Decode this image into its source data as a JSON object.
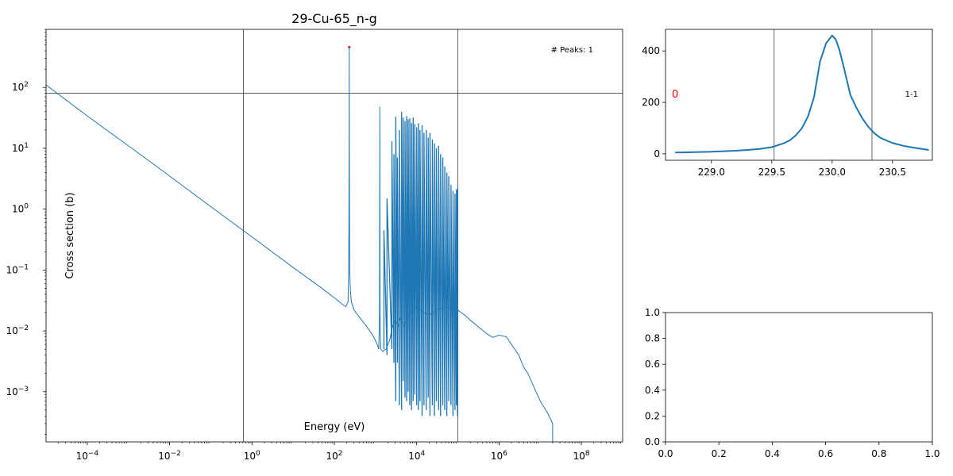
{
  "chart_data": [
    {
      "type": "line",
      "title": "29-Cu-65_n-g",
      "xlabel": "Energy (eV)",
      "ylabel": "Cross section (b)",
      "xscale": "log",
      "yscale": "log",
      "xlim": [
        1e-05,
        1000000000
      ],
      "ylim": [
        0.00015,
        900
      ],
      "x_ticks": [
        {
          "value": 0.0001,
          "base": "10",
          "exp": "−4"
        },
        {
          "value": 0.01,
          "base": "10",
          "exp": "−2"
        },
        {
          "value": 1,
          "base": "10",
          "exp": "0"
        },
        {
          "value": 100,
          "base": "10",
          "exp": "2"
        },
        {
          "value": 10000,
          "base": "10",
          "exp": "4"
        },
        {
          "value": 1000000,
          "base": "10",
          "exp": "6"
        },
        {
          "value": 100000000,
          "base": "10",
          "exp": "8"
        }
      ],
      "y_ticks": [
        {
          "value": 0.001,
          "base": "10",
          "exp": "−3"
        },
        {
          "value": 0.01,
          "base": "10",
          "exp": "−2"
        },
        {
          "value": 0.1,
          "base": "10",
          "exp": "−1"
        },
        {
          "value": 1,
          "base": "10",
          "exp": "0"
        },
        {
          "value": 10,
          "base": "10",
          "exp": "1"
        },
        {
          "value": 100,
          "base": "10",
          "exp": "2"
        }
      ],
      "vlines": [
        0.625,
        100000
      ],
      "hlines": [
        80
      ],
      "annotation": "# Peaks: 1",
      "peak_marker": {
        "x": 230,
        "y": 460,
        "color": "#d62728"
      },
      "line_color": "#1f77b4",
      "series": [
        {
          "x": [
            1e-05,
            0.0001,
            0.001,
            0.01,
            0.1,
            1,
            10,
            50,
            100,
            150,
            190,
            215,
            222,
            226,
            228,
            229,
            229.6,
            230,
            230.4,
            231,
            232,
            234,
            238,
            245,
            260,
            300,
            400,
            600,
            900,
            1100,
            1200,
            1250,
            1270,
            1290,
            1310,
            1350,
            1500,
            1800,
            2200,
            2600,
            3000,
            3500,
            4000,
            5000,
            7000,
            10000,
            15000,
            20000,
            30000,
            50000,
            70000,
            90000,
            100000,
            120000,
            150000,
            200000,
            300000,
            500000,
            700000,
            1000000,
            1500000,
            2000000,
            3000000,
            4000000,
            5000000,
            7000000,
            10000000,
            15000000,
            20000000,
            20000000
          ],
          "y": [
            110,
            34,
            11,
            3.5,
            1.1,
            0.35,
            0.11,
            0.05,
            0.035,
            0.028,
            0.025,
            0.03,
            0.09,
            0.6,
            5,
            30,
            200,
            460,
            200,
            30,
            3,
            0.3,
            0.08,
            0.045,
            0.03,
            0.022,
            0.017,
            0.012,
            0.008,
            0.006,
            0.005,
            0.02,
            48,
            0.02,
            0.008,
            0.005,
            0.0046,
            0.005,
            0.007,
            0.012,
            0.015,
            0.012,
            0.016,
            0.012,
            0.02,
            0.025,
            0.02,
            0.018,
            0.022,
            0.025,
            0.023,
            0.021,
            0.022,
            0.02,
            0.018,
            0.015,
            0.012,
            0.009,
            0.0078,
            0.0085,
            0.008,
            0.006,
            0.004,
            0.0025,
            0.002,
            0.0012,
            0.0007,
            0.00045,
            0.0003,
            0.00015
          ]
        },
        {
          "x": [
            1600,
            1900,
            2500,
            2800,
            3100,
            3400,
            3800,
            4300,
            4700,
            5200,
            5700,
            6200,
            6800,
            7500,
            8200,
            9000,
            10000,
            11000,
            12000,
            13500,
            15000,
            17000,
            19000,
            21000,
            24000,
            27000,
            30000,
            34000,
            38000,
            43000,
            48000,
            54000,
            60000,
            68000,
            76000,
            85000,
            92000,
            98000
          ],
          "y": [
            0.45,
            1.5,
            13,
            8,
            33,
            7,
            20,
            40,
            32,
            28,
            34,
            30,
            31,
            26,
            32,
            25,
            22,
            26,
            20,
            24,
            18,
            20,
            15,
            18,
            14,
            12,
            10,
            11,
            8,
            7,
            5,
            4,
            3.5,
            2.5,
            2,
            1.8,
            2.1,
            2.2
          ],
          "lows": [
            0.005,
            0.004,
            0.005,
            0.003,
            0.0007,
            0.003,
            0.0006,
            0.0005,
            0.0015,
            0.0008,
            0.0007,
            0.001,
            0.0006,
            0.0005,
            0.0007,
            0.0009,
            0.0006,
            0.0005,
            0.0007,
            0.0004,
            0.0006,
            0.0005,
            0.0008,
            0.0004,
            0.0006,
            0.0004,
            0.0007,
            0.0005,
            0.0004,
            0.0006,
            0.0005,
            0.0004,
            0.0007,
            0.0006,
            0.0004,
            0.0005,
            0.0006,
            0.0004
          ]
        }
      ]
    },
    {
      "type": "line",
      "xlim": [
        228.62,
        230.83
      ],
      "ylim": [
        -25,
        484
      ],
      "x_ticks": [
        "229.0",
        "229.5",
        "230.0",
        "230.5"
      ],
      "y_ticks": [
        "0",
        "200",
        "400"
      ],
      "vlines": [
        229.52,
        230.33
      ],
      "left_label": "0",
      "right_label": "1-1",
      "line_color": "#1f77b4",
      "series": [
        {
          "x": [
            228.7,
            228.8,
            228.9,
            229.0,
            229.1,
            229.2,
            229.3,
            229.4,
            229.5,
            229.6,
            229.65,
            229.7,
            229.75,
            229.8,
            229.85,
            229.9,
            229.95,
            230.0,
            230.03,
            230.06,
            230.1,
            230.15,
            230.2,
            230.25,
            230.3,
            230.35,
            230.4,
            230.5,
            230.6,
            230.7,
            230.8
          ],
          "y": [
            5,
            6,
            7,
            8,
            10,
            12,
            15,
            19,
            26,
            41,
            53,
            72,
            100,
            145,
            220,
            360,
            430,
            460,
            445,
            405,
            330,
            230,
            180,
            138,
            105,
            80,
            62,
            42,
            30,
            22,
            15
          ]
        }
      ]
    },
    {
      "type": "line",
      "xlim": [
        0,
        1
      ],
      "ylim": [
        0,
        1
      ],
      "x_ticks": [
        "0.0",
        "0.2",
        "0.4",
        "0.6",
        "0.8",
        "1.0"
      ],
      "y_ticks": [
        "0.0",
        "0.2",
        "0.4",
        "0.6",
        "0.8",
        "1.0"
      ],
      "series": []
    }
  ]
}
